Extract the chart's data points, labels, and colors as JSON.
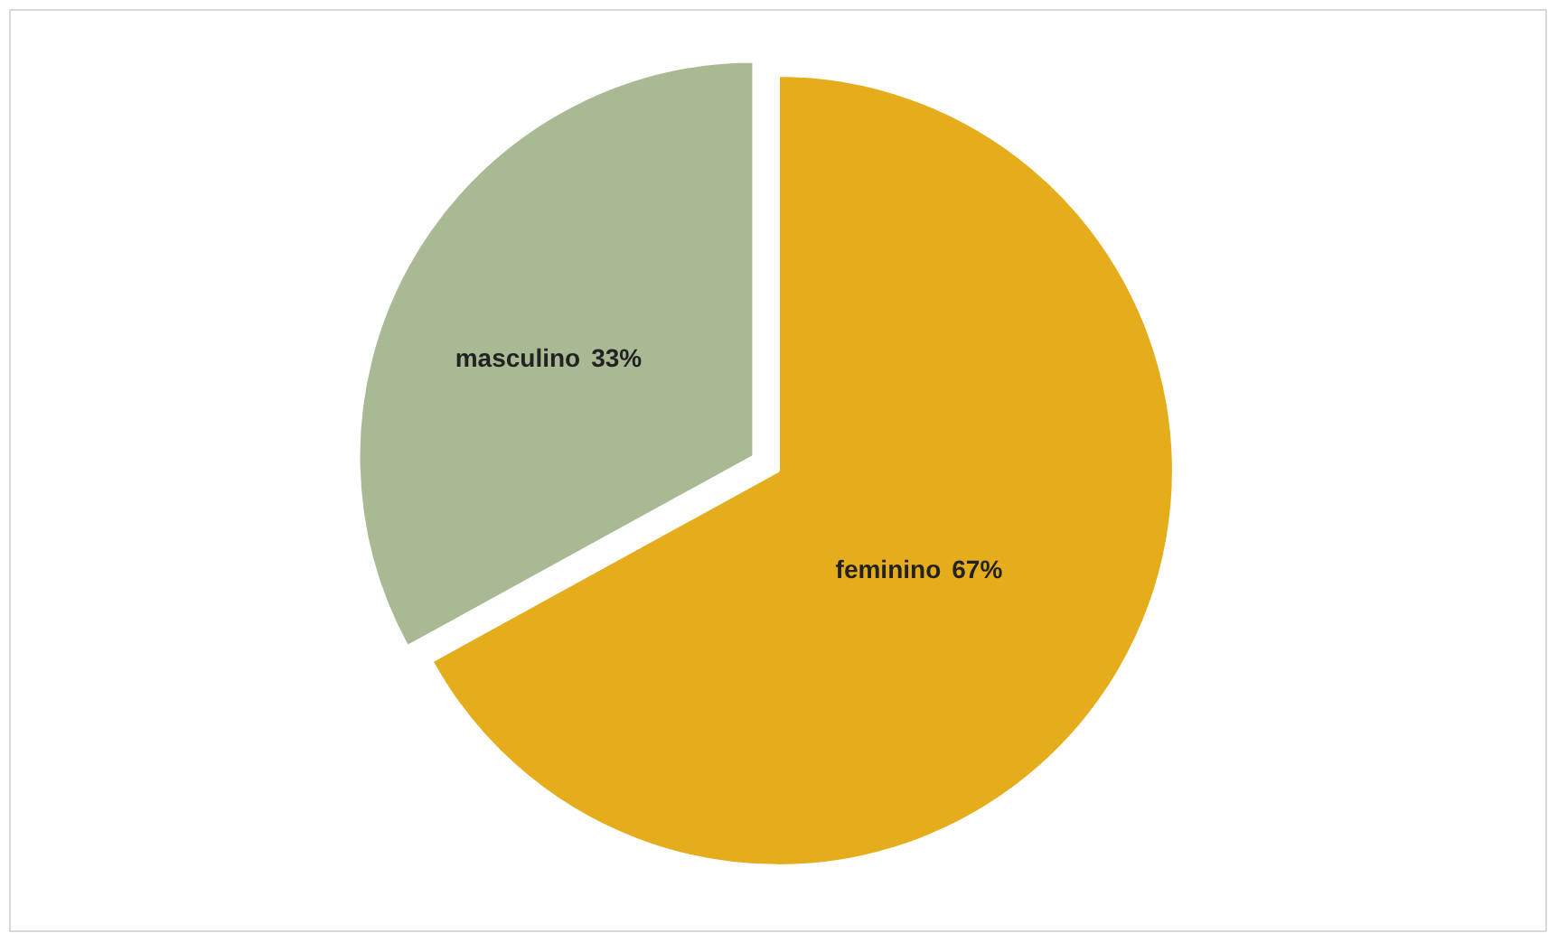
{
  "chart_data": {
    "type": "pie",
    "categories": [
      "masculino",
      "feminino"
    ],
    "values": [
      33,
      67
    ],
    "colors": [
      "#a9b994",
      "#e5ad1c"
    ],
    "value_labels": [
      "33%",
      "67%"
    ]
  }
}
